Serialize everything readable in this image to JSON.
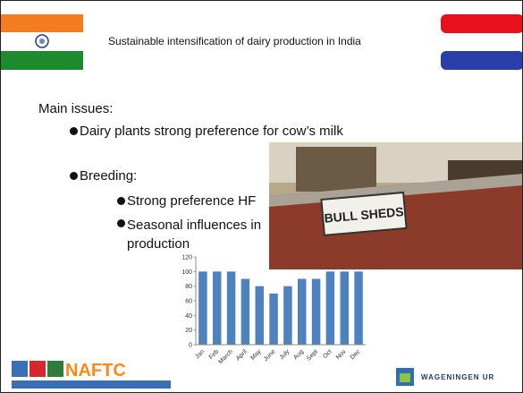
{
  "header": {
    "title": "Sustainable intensification of dairy production in India"
  },
  "body": {
    "heading": "Main issues:",
    "bullets": [
      "Dairy plants strong preference for cow’s milk",
      "Breeding:"
    ],
    "sub_bullets": [
      "Strong preference HF",
      "Seasonal influences in production"
    ]
  },
  "chart": {
    "type": "bar",
    "categories": [
      "Jan",
      "Feb",
      "March",
      "April",
      "May",
      "June",
      "July",
      "Aug",
      "Sept",
      "Oct",
      "Nov",
      "Dec"
    ],
    "values": [
      100,
      100,
      100,
      90,
      80,
      70,
      80,
      90,
      90,
      100,
      100,
      100
    ],
    "color": "#4f81bd",
    "ylim": [
      0,
      120
    ],
    "yticks": [
      0,
      20,
      40,
      60,
      80,
      100,
      120
    ]
  },
  "photo": {
    "sign": "BULL SHEDS"
  },
  "logos": {
    "left": "NAFTC",
    "right": "WAGENINGEN UR"
  }
}
